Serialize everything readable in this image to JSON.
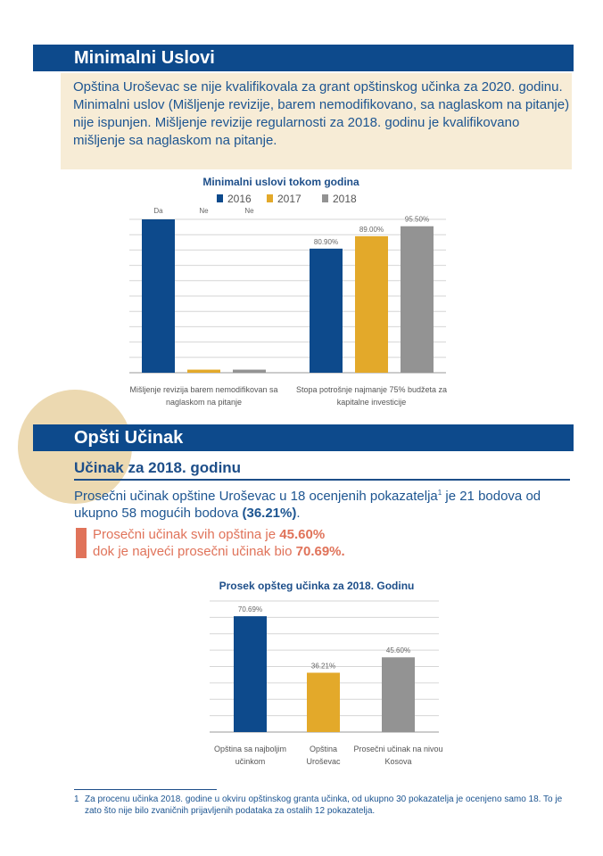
{
  "section1": {
    "title": "Minimalni Uslovi",
    "intro_p1": "Opština Uroševac se nije kvalifikovala za grant opštinskog učinka za 2020. godinu.",
    "intro_p2": "Minimalni uslov (Mišljenje revizije, barem nemodifikovano, sa naglaskom na pitanje) nije ispunjen. Mišljenje revizije regularnosti za 2018. godinu je kvalifikovano mišljenje sa naglaskom na pitanje."
  },
  "section2": {
    "title": "Opšti Učinak",
    "subtitle": "Učinak za 2018. godinu",
    "body_a": "Prosečni učinak opštine Uroševac u 18 ocenjenih pokazatelja",
    "body_sup": "1",
    "body_b": " je 21 bodova od ukupno 58 mogućih bodova ",
    "body_strong": "(36.21%)",
    "body_c": ".",
    "callout_a": "Prosečni učinak svih opština je ",
    "callout_strong1": "45.60%",
    "callout_b": "dok je najveći prosečni učinak bio ",
    "callout_strong2": "70.69%."
  },
  "footnote": {
    "number": "1",
    "text": "Za procenu učinka 2018. godine u okviru opštinskog granta učinka, od ukupno 30 pokazatelja je ocenjeno samo 18. To je zato što nije bilo zvaničnih prijavljenih podataka za ostalih 12 pokazatelja."
  },
  "chart_data": [
    {
      "type": "bar",
      "title": "Minimalni uslovi tokom godina",
      "legend_placement": "top",
      "categories": [
        "Mišljenje revizija barem nemodifikovan sa naglaskom na pitanje",
        "Stopa potrošnje najmanje 75% budžeta za kapitalne investicije"
      ],
      "category_lines": [
        [
          "Mišljenje revizija barem nemodifikovan sa",
          "naglaskom na pitanje"
        ],
        [
          "Stopa potrošnje najmanje 75% budžeta za",
          "kapitalne investicije"
        ]
      ],
      "series": [
        {
          "name": "2016",
          "color": "#0d4a8c",
          "values": [
            100,
            80.9
          ],
          "labels": [
            "Da",
            "80.90%"
          ]
        },
        {
          "name": "2017",
          "color": "#e3a92a",
          "values": [
            2,
            89.0
          ],
          "labels": [
            "Ne",
            "89.00%"
          ]
        },
        {
          "name": "2018",
          "color": "#939393",
          "values": [
            2,
            95.5
          ],
          "labels": [
            "Ne",
            "95.50%"
          ]
        }
      ],
      "ylim": [
        0,
        100
      ],
      "grid": true
    },
    {
      "type": "bar",
      "title": "Prosek opšteg učinka za 2018. Godinu",
      "categories": [
        "Opština sa najboljim učinkom",
        "Opština Uroševac",
        "Prosečni učinak na nivou Kosova"
      ],
      "category_lines": [
        [
          "Opština sa najboljim",
          "učinkom"
        ],
        [
          "Opština",
          "Uroševac"
        ],
        [
          "Prosečni učinak na nivou",
          "Kosova"
        ]
      ],
      "values": [
        70.69,
        36.21,
        45.6
      ],
      "labels": [
        "70.69%",
        "36.21%",
        "45.60%"
      ],
      "colors": [
        "#0d4a8c",
        "#e3a92a",
        "#939393"
      ],
      "ylim": [
        0,
        80
      ],
      "grid": true
    }
  ]
}
